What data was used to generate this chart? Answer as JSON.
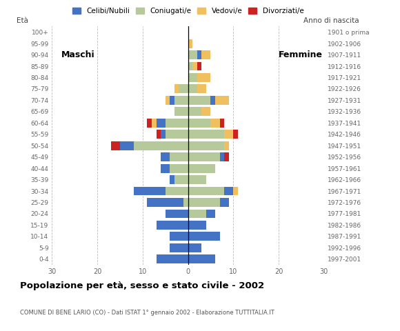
{
  "age_groups": [
    "0-4",
    "5-9",
    "10-14",
    "15-19",
    "20-24",
    "25-29",
    "30-34",
    "35-39",
    "40-44",
    "45-49",
    "50-54",
    "55-59",
    "60-64",
    "65-69",
    "70-74",
    "75-79",
    "80-84",
    "85-89",
    "90-94",
    "95-99",
    "100+"
  ],
  "birth_years": [
    "1997-2001",
    "1992-1996",
    "1987-1991",
    "1982-1986",
    "1977-1981",
    "1972-1976",
    "1967-1971",
    "1962-1966",
    "1957-1961",
    "1952-1956",
    "1947-1951",
    "1942-1946",
    "1937-1941",
    "1932-1936",
    "1927-1931",
    "1922-1926",
    "1917-1921",
    "1912-1916",
    "1907-1911",
    "1902-1906",
    "1901 o prima"
  ],
  "males": {
    "celibe": [
      7,
      4,
      4,
      7,
      5,
      8,
      7,
      1,
      2,
      2,
      3,
      1,
      2,
      0,
      1,
      0,
      0,
      0,
      0,
      0,
      0
    ],
    "coniugato": [
      0,
      0,
      0,
      0,
      0,
      1,
      5,
      3,
      4,
      4,
      12,
      5,
      5,
      3,
      3,
      2,
      0,
      0,
      0,
      0,
      0
    ],
    "vedovo": [
      0,
      0,
      0,
      0,
      0,
      0,
      0,
      0,
      0,
      0,
      0,
      0,
      1,
      0,
      1,
      1,
      0,
      0,
      0,
      0,
      0
    ],
    "divorziato": [
      0,
      0,
      0,
      0,
      0,
      0,
      0,
      0,
      0,
      0,
      2,
      1,
      1,
      0,
      0,
      0,
      0,
      0,
      0,
      0,
      0
    ]
  },
  "females": {
    "nubile": [
      6,
      3,
      7,
      4,
      2,
      2,
      2,
      0,
      0,
      1,
      0,
      0,
      0,
      0,
      1,
      0,
      0,
      0,
      1,
      0,
      0
    ],
    "coniugata": [
      0,
      0,
      0,
      0,
      4,
      7,
      8,
      4,
      6,
      7,
      8,
      8,
      5,
      3,
      5,
      2,
      2,
      1,
      2,
      0,
      0
    ],
    "vedova": [
      0,
      0,
      0,
      0,
      0,
      0,
      1,
      0,
      0,
      0,
      1,
      2,
      2,
      2,
      3,
      2,
      3,
      1,
      2,
      1,
      0
    ],
    "divorziata": [
      0,
      0,
      0,
      0,
      0,
      0,
      0,
      0,
      0,
      1,
      0,
      1,
      1,
      0,
      0,
      0,
      0,
      1,
      0,
      0,
      0
    ]
  },
  "colors": {
    "celibe_nubile": "#4472c4",
    "coniugato_a": "#b5c99a",
    "vedovo_a": "#f0c060",
    "divorziato_a": "#cc2222"
  },
  "title": "Popolazione per età, sesso e stato civile - 2002",
  "subtitle": "COMUNE DI BENE LARIO (CO) - Dati ISTAT 1° gennaio 2002 - Elaborazione TUTTITALIA.IT",
  "xlabel_left": "Maschi",
  "xlabel_right": "Femmine",
  "ylabel_left": "Età",
  "ylabel_right": "Anno di nascita",
  "xlim": 30,
  "legend_labels": [
    "Celibi/Nubili",
    "Coniugati/e",
    "Vedovi/e",
    "Divorziati/e"
  ],
  "bg_color": "#ffffff"
}
